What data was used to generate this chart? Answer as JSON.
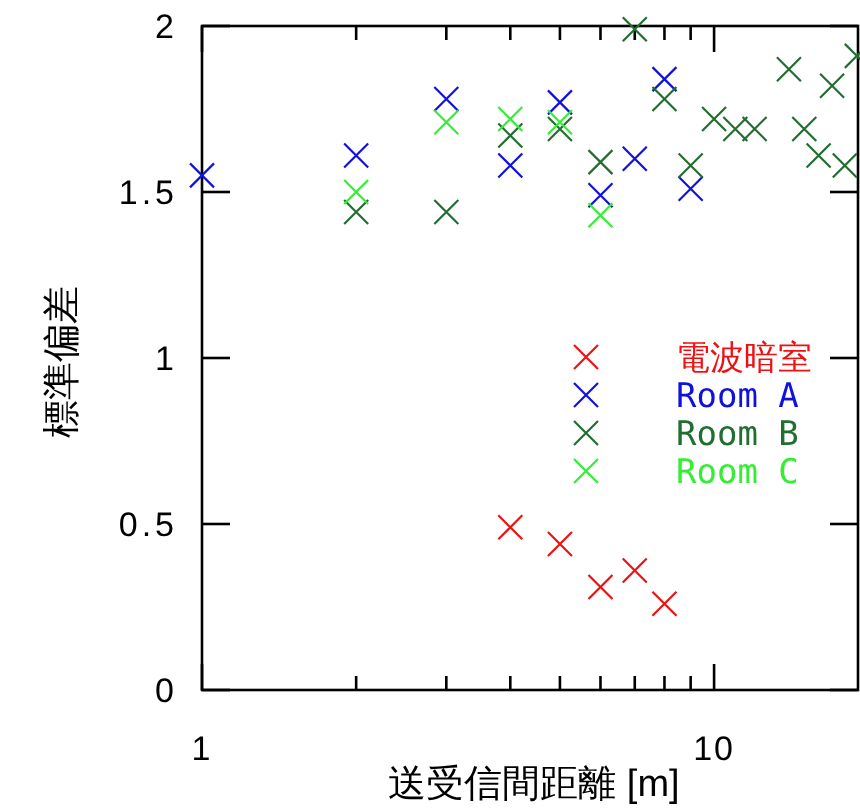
{
  "chart_data": {
    "type": "scatter",
    "xlabel": "送受信間距離 [m]",
    "ylabel": "標準偏差",
    "log": "x",
    "xlim": [
      1,
      19.1
    ],
    "xticks": [
      1,
      {
        "value": 2,
        "label": null
      },
      {
        "value": 3,
        "label": null
      },
      {
        "value": 4,
        "label": null
      },
      {
        "value": 5,
        "label": null
      },
      {
        "value": 6,
        "label": null
      },
      {
        "value": 7,
        "label": null
      },
      {
        "value": 8,
        "label": null
      },
      {
        "value": 9,
        "label": null
      },
      10
    ],
    "ylim": [
      0,
      2
    ],
    "yticks": [
      0,
      0.5,
      1,
      1.5,
      2
    ],
    "marker": "cross",
    "legend": "right",
    "series": [
      {
        "name": "電波暗室",
        "color": "#ee1111",
        "x": [
          4,
          5,
          6,
          7,
          8
        ],
        "values": [
          0.49,
          0.44,
          0.31,
          0.36,
          0.26
        ]
      },
      {
        "name": "Room A",
        "color": "#1111dd",
        "x": [
          1,
          2,
          3,
          4,
          5,
          6,
          7,
          8,
          9
        ],
        "values": [
          1.55,
          1.61,
          1.78,
          1.58,
          1.77,
          1.49,
          1.6,
          1.84,
          1.51
        ]
      },
      {
        "name": "Room B",
        "color": "#226e30",
        "x": [
          2,
          3,
          4,
          5,
          6,
          7,
          8,
          9,
          10,
          11,
          12,
          14,
          15,
          16,
          17,
          18,
          19
        ],
        "values": [
          1.44,
          1.44,
          1.67,
          1.69,
          1.59,
          1.99,
          1.78,
          1.58,
          1.72,
          1.69,
          1.69,
          1.87,
          1.69,
          1.61,
          1.82,
          1.58,
          1.91
        ]
      },
      {
        "name": "Room C",
        "color": "#33ee33",
        "x": [
          2,
          3,
          4,
          5,
          6
        ],
        "values": [
          1.5,
          1.71,
          1.72,
          1.71,
          1.43
        ]
      }
    ]
  }
}
